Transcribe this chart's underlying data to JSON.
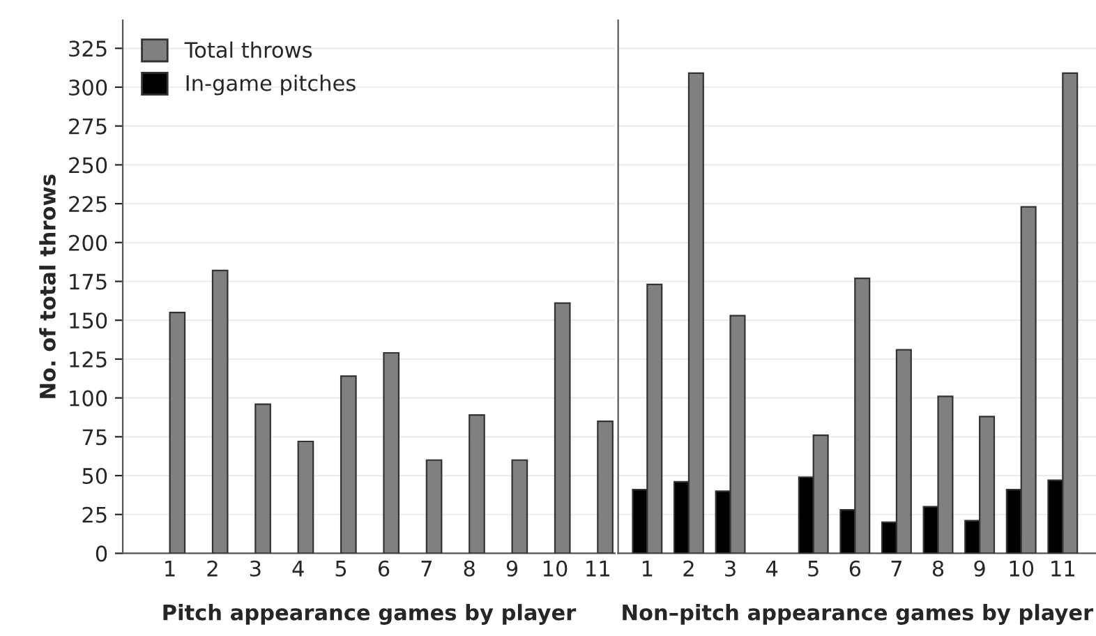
{
  "chart_data": [
    {
      "type": "bar",
      "xlabel": "Pitch appearance games by player",
      "ylabel": "No. of total throws",
      "categories": [
        "1",
        "2",
        "3",
        "4",
        "5",
        "6",
        "7",
        "8",
        "9",
        "10",
        "11"
      ],
      "series": [
        {
          "name": "In-game pitches",
          "color": "#000000",
          "values": [
            null,
            null,
            null,
            null,
            null,
            null,
            null,
            null,
            null,
            null,
            null
          ]
        },
        {
          "name": "Total throws",
          "color": "#808080",
          "values": [
            155,
            182,
            96,
            72,
            114,
            129,
            60,
            89,
            60,
            161,
            85
          ]
        }
      ],
      "ylim": [
        0,
        343
      ],
      "yticks": [
        0,
        25,
        50,
        75,
        100,
        125,
        150,
        175,
        200,
        225,
        250,
        275,
        300,
        325
      ],
      "grid": "y",
      "legend": "top left"
    },
    {
      "type": "bar",
      "xlabel": "Non–pitch appearance games by player",
      "categories": [
        "1",
        "2",
        "3",
        "4",
        "5",
        "6",
        "7",
        "8",
        "9",
        "10",
        "11"
      ],
      "series": [
        {
          "color": "#000000",
          "values": [
            41,
            46,
            40,
            null,
            49,
            28,
            20,
            30,
            21,
            41,
            47
          ]
        },
        {
          "color": "#808080",
          "values": [
            173,
            309,
            153,
            null,
            76,
            177,
            131,
            101,
            88,
            223,
            309
          ]
        }
      ],
      "ylim": [
        0,
        343
      ],
      "yticks": [
        0,
        25,
        50,
        75,
        100,
        125,
        150,
        175,
        200,
        225,
        250,
        275,
        300,
        325
      ],
      "grid": "y",
      "tick_labels": "x"
    }
  ]
}
